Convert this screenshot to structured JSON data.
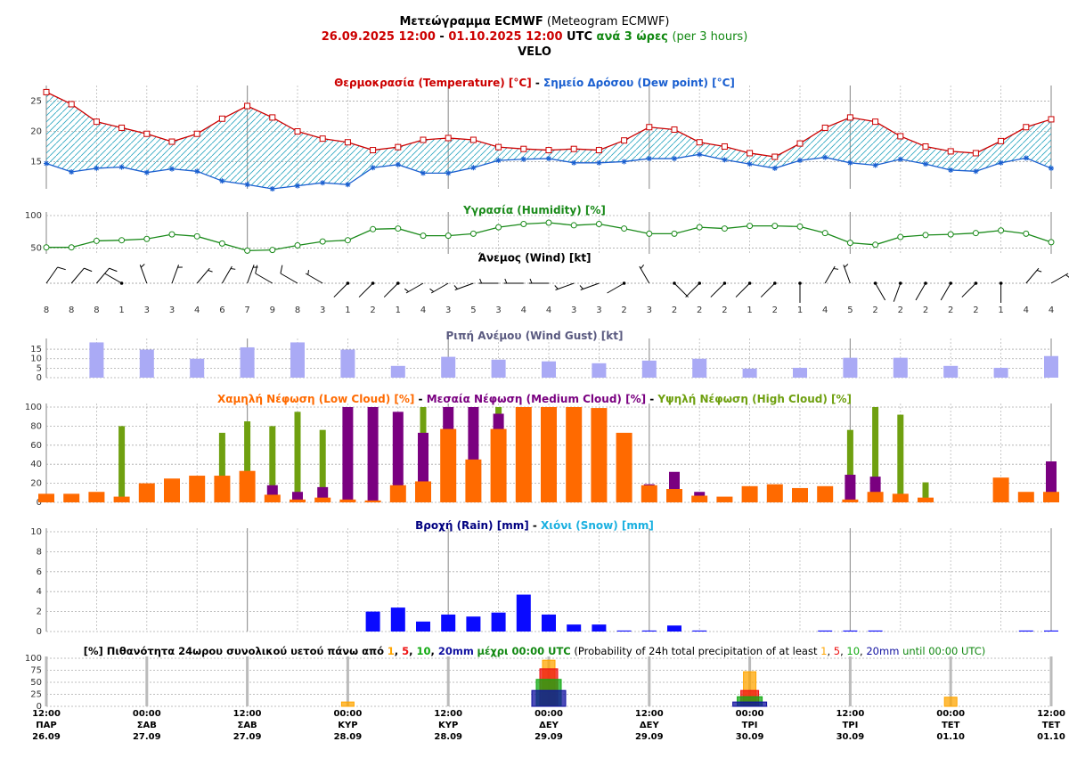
{
  "title": {
    "name_gr": "Μετεώγραμμα ECMWF",
    "name_en": "(Meteogram ECMWF)",
    "start": "26.09.2025 12:00",
    "end": "01.10.2025 12:00",
    "tz": "UTC",
    "step_gr": "ανά 3 ώρες",
    "step_en": "(per 3 hours)",
    "location": "VELO"
  },
  "chart_data": [
    {
      "type": "line",
      "series": [
        {
          "name": "Θερμοκρασία (Temperature) [°C]",
          "color": "#cc0000",
          "marker": "square",
          "values": [
            26.5,
            24.5,
            21.6,
            20.6,
            19.6,
            18.3,
            19.6,
            22.1,
            24.2,
            22.3,
            20.0,
            18.8,
            18.2,
            16.9,
            17.4,
            18.6,
            18.9,
            18.6,
            17.4,
            17.1,
            16.9,
            17.1,
            16.9,
            18.5,
            20.7,
            20.3,
            18.2,
            17.5,
            16.4,
            15.8,
            18.0,
            20.6,
            22.3,
            21.6,
            19.2,
            17.5,
            16.7,
            16.4,
            18.4,
            20.7,
            22.0
          ]
        },
        {
          "name": "Σημείο Δρόσου (Dew point) [°C]",
          "color": "#1a5fd0",
          "marker": "star",
          "values": [
            14.7,
            13.3,
            13.9,
            14.1,
            13.2,
            13.8,
            13.4,
            11.8,
            11.2,
            10.5,
            11.0,
            11.5,
            11.2,
            14.0,
            14.5,
            13.1,
            13.1,
            14.0,
            15.2,
            15.4,
            15.5,
            14.8,
            14.8,
            15.0,
            15.5,
            15.5,
            16.2,
            15.3,
            14.6,
            13.9,
            15.2,
            15.7,
            14.8,
            14.4,
            15.4,
            14.6,
            13.6,
            13.4,
            14.8,
            15.6,
            13.9
          ]
        }
      ],
      "fill_between": "#2aa6c0",
      "ylim": [
        10.5,
        27
      ],
      "yticks": [
        15,
        20,
        25
      ],
      "grid": true
    },
    {
      "type": "line",
      "series": [
        {
          "name": "Υγρασία (Humidity) [%]",
          "color": "#1a8a1a",
          "marker": "circle",
          "values": [
            51,
            51,
            61,
            62,
            64,
            71,
            68,
            57,
            46,
            47,
            54,
            60,
            62,
            79,
            80,
            69,
            69,
            72,
            82,
            87,
            89,
            85,
            87,
            80,
            72,
            72,
            82,
            80,
            84,
            84,
            83,
            73,
            58,
            55,
            67,
            70,
            71,
            73,
            77,
            72,
            59
          ]
        }
      ],
      "ylim": [
        41,
        100
      ],
      "yticks": [
        50,
        100
      ],
      "grid": true
    },
    {
      "type": "barbs",
      "title": "Άνεμος (Wind) [kt]",
      "color": "#000000",
      "speed": [
        8,
        8,
        8,
        1,
        3,
        3,
        4,
        6,
        7,
        9,
        8,
        3,
        1,
        2,
        1,
        4,
        3,
        5,
        3,
        4,
        4,
        3,
        3,
        2,
        3,
        2,
        2,
        2,
        1,
        2,
        1,
        4,
        5,
        2,
        2,
        2,
        2,
        2,
        1,
        4,
        4
      ],
      "direction": [
        35,
        40,
        40,
        300,
        340,
        20,
        40,
        30,
        20,
        300,
        300,
        300,
        225,
        225,
        225,
        240,
        240,
        250,
        270,
        270,
        270,
        250,
        250,
        240,
        330,
        135,
        225,
        225,
        225,
        225,
        180,
        30,
        340,
        150,
        200,
        210,
        210,
        225,
        180,
        40,
        60
      ]
    },
    {
      "type": "bar",
      "series": [
        {
          "name": "Ριπή Ανέμου (Wind Gust) [kt]",
          "color": "#aaaaf5",
          "label_color": "#5a5a80",
          "values": [
            null,
            null,
            18.6,
            null,
            14.8,
            null,
            10,
            null,
            16,
            null,
            18.6,
            null,
            14.8,
            null,
            6.2,
            null,
            11,
            null,
            9.5,
            null,
            8.6,
            null,
            7.6,
            null,
            9,
            null,
            10,
            null,
            4.8,
            null,
            5.2,
            null,
            10.5,
            null,
            10.5,
            null,
            6.2,
            null,
            5.2,
            null,
            11.4
          ]
        }
      ],
      "ylim": [
        0,
        18.8
      ],
      "yticks": [
        0,
        5,
        10,
        15
      ],
      "grid": true
    },
    {
      "type": "bar",
      "series": [
        {
          "name": "Χαμηλή Νέφωση (Low Cloud) [%]",
          "color": "#ff6a00",
          "values": [
            9,
            9,
            11,
            6,
            20,
            25,
            28,
            28,
            33,
            8,
            3,
            5,
            3,
            2,
            18,
            22,
            77,
            45,
            77,
            100,
            100,
            100,
            99,
            73,
            18,
            14,
            7,
            6,
            17,
            19,
            15,
            17,
            3,
            11,
            9,
            5,
            0,
            0,
            26,
            11,
            11
          ]
        },
        {
          "name": "Μεσαία Νέφωση (Medium Cloud) [%]",
          "color": "#7a0080",
          "values": [
            0,
            0,
            0,
            0,
            0,
            0,
            0,
            0,
            0,
            18,
            11,
            16,
            100,
            100,
            95,
            73,
            100,
            100,
            93,
            0,
            0,
            0,
            0,
            0,
            19,
            32,
            11,
            0,
            0,
            0,
            0,
            0,
            29,
            27,
            0,
            0,
            0,
            0,
            0,
            0,
            43
          ]
        },
        {
          "name": "Υψηλή Νέφωση (High Cloud) [%]",
          "color": "#6fa010",
          "values": [
            0,
            0,
            0,
            80,
            0,
            0,
            0,
            73,
            85,
            80,
            95,
            76,
            0,
            0,
            0,
            100,
            100,
            100,
            100,
            0,
            0,
            0,
            0,
            0,
            0,
            0,
            0,
            0,
            0,
            0,
            0,
            0,
            76,
            100,
            92,
            21,
            0,
            0,
            0,
            0,
            0
          ]
        }
      ],
      "ylim": [
        0,
        100
      ],
      "yticks": [
        0,
        20,
        40,
        60,
        80,
        100
      ],
      "grid": true
    },
    {
      "type": "bar",
      "series": [
        {
          "name": "Βροχή (Rain) [mm]",
          "color": "#0a0aff",
          "label_color": "#000080",
          "values": [
            0,
            0,
            0,
            0,
            0,
            0,
            0,
            0,
            0,
            0,
            0,
            0,
            0,
            2.0,
            2.4,
            1.0,
            1.7,
            1.5,
            1.9,
            3.7,
            1.7,
            0.7,
            0.7,
            0.1,
            0.1,
            0.6,
            0.1,
            0,
            0,
            0,
            0,
            0.1,
            0.1,
            0.1,
            0,
            0,
            0,
            0,
            0,
            0.1,
            0.1
          ]
        },
        {
          "name": "Χιόνι (Snow) [mm]",
          "color": "#1ab0e0",
          "values": [
            0,
            0,
            0,
            0,
            0,
            0,
            0,
            0,
            0,
            0,
            0,
            0,
            0,
            0,
            0,
            0,
            0,
            0,
            0,
            0,
            0,
            0,
            0,
            0,
            0,
            0,
            0,
            0,
            0,
            0,
            0,
            0,
            0,
            0,
            0,
            0,
            0,
            0,
            0,
            0,
            0
          ]
        }
      ],
      "ylim": [
        0,
        10
      ],
      "yticks": [
        0,
        2,
        4,
        6,
        8,
        10
      ],
      "grid": true
    },
    {
      "type": "bar",
      "title": {
        "prefix_gr": "[%] Πιθανότητα 24ωρου συνολικού υετού πάνω από",
        "until_gr": "μέχρι 00:00 UTC",
        "prefix_en": "(Probability of 24h total precipitation of at least",
        "until_en": "until 00:00 UTC)",
        "until_color": "#118811"
      },
      "series": [
        {
          "name": "1",
          "color": "#ffa500",
          "values": [
            null,
            0,
            null,
            9,
            null,
            96,
            null,
            72,
            null,
            19,
            null
          ]
        },
        {
          "name": "5",
          "color": "#ee1111",
          "values": [
            null,
            0,
            null,
            0,
            null,
            78,
            null,
            33,
            null,
            0,
            null
          ]
        },
        {
          "name": "10",
          "color": "#11aa11",
          "values": [
            null,
            0,
            null,
            0,
            null,
            56,
            null,
            20,
            null,
            0,
            null
          ]
        },
        {
          "name": "20mm",
          "color": "#1010a0",
          "values": [
            null,
            0,
            null,
            0,
            null,
            33,
            null,
            9,
            null,
            0,
            null
          ]
        }
      ],
      "ylim": [
        0,
        100
      ],
      "yticks": [
        0,
        25,
        50,
        75,
        100
      ],
      "grid": true,
      "xticks": [
        {
          "time": "12:00",
          "day": "ΠΑΡ",
          "date": "26.09"
        },
        {
          "time": "00:00",
          "day": "ΣΑΒ",
          "date": "27.09"
        },
        {
          "time": "12:00",
          "day": "ΣΑΒ",
          "date": "27.09"
        },
        {
          "time": "00:00",
          "day": "ΚΥΡ",
          "date": "28.09"
        },
        {
          "time": "12:00",
          "day": "ΚΥΡ",
          "date": "28.09"
        },
        {
          "time": "00:00",
          "day": "ΔΕΥ",
          "date": "29.09"
        },
        {
          "time": "12:00",
          "day": "ΔΕΥ",
          "date": "29.09"
        },
        {
          "time": "00:00",
          "day": "ΤΡΙ",
          "date": "30.09"
        },
        {
          "time": "12:00",
          "day": "ΤΡΙ",
          "date": "30.09"
        },
        {
          "time": "00:00",
          "day": "ΤΕΤ",
          "date": "01.10"
        },
        {
          "time": "12:00",
          "day": "ΤΕΤ",
          "date": "01.10"
        }
      ]
    }
  ]
}
